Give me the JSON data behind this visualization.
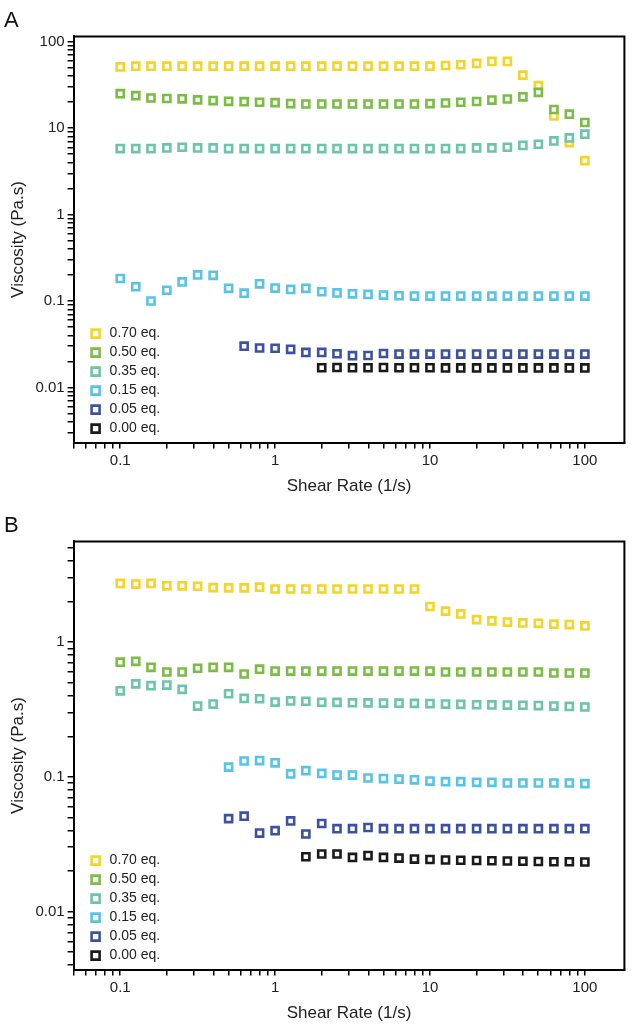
{
  "chart_data": [
    {
      "type": "scatter",
      "title": "A",
      "xlabel": "Shear Rate (1/s)",
      "ylabel": "Viscosity (Pa.s)",
      "log": "xy",
      "grid": false,
      "legend": "bottom left",
      "marker": "square",
      "x": [
        0.1,
        0.126,
        0.158,
        0.2,
        0.251,
        0.316,
        0.398,
        0.501,
        0.631,
        0.794,
        1,
        1.26,
        1.58,
        2,
        2.51,
        3.16,
        3.98,
        5.01,
        6.31,
        7.94,
        10,
        12.6,
        15.8,
        20,
        25.1,
        31.6,
        39.8,
        50.1,
        63.1,
        79.4,
        100
      ],
      "xlim": [
        0.05,
        180
      ],
      "xticks": [
        {
          "value": 0.05,
          "label": null
        },
        {
          "value": 0.06,
          "label": null
        },
        {
          "value": 0.07,
          "label": null
        },
        {
          "value": 0.08,
          "label": null
        },
        {
          "value": 0.09,
          "label": null
        },
        0.1,
        {
          "value": 0.2,
          "label": null
        },
        {
          "value": 0.3,
          "label": null
        },
        {
          "value": 0.4,
          "label": null
        },
        {
          "value": 0.5,
          "label": null
        },
        {
          "value": 0.6,
          "label": null
        },
        {
          "value": 0.7,
          "label": null
        },
        {
          "value": 0.8,
          "label": null
        },
        {
          "value": 0.9,
          "label": null
        },
        1,
        {
          "value": 2,
          "label": null
        },
        {
          "value": 3,
          "label": null
        },
        {
          "value": 4,
          "label": null
        },
        {
          "value": 5,
          "label": null
        },
        {
          "value": 6,
          "label": null
        },
        {
          "value": 7,
          "label": null
        },
        {
          "value": 8,
          "label": null
        },
        {
          "value": 9,
          "label": null
        },
        10,
        {
          "value": 20,
          "label": null
        },
        {
          "value": 30,
          "label": null
        },
        {
          "value": 40,
          "label": null
        },
        {
          "value": 50,
          "label": null
        },
        {
          "value": 60,
          "label": null
        },
        {
          "value": 70,
          "label": null
        },
        {
          "value": 80,
          "label": null
        },
        {
          "value": 90,
          "label": null
        },
        100
      ],
      "ylim": [
        0.0023,
        115
      ],
      "yticks": [
        {
          "value": 0.003,
          "label": null
        },
        {
          "value": 0.004,
          "label": null
        },
        {
          "value": 0.005,
          "label": null
        },
        {
          "value": 0.006,
          "label": null
        },
        {
          "value": 0.007,
          "label": null
        },
        {
          "value": 0.008,
          "label": null
        },
        {
          "value": 0.009,
          "label": null
        },
        0.01,
        {
          "value": 0.02,
          "label": null
        },
        {
          "value": 0.03,
          "label": null
        },
        {
          "value": 0.04,
          "label": null
        },
        {
          "value": 0.05,
          "label": null
        },
        {
          "value": 0.06,
          "label": null
        },
        {
          "value": 0.07,
          "label": null
        },
        {
          "value": 0.08,
          "label": null
        },
        {
          "value": 0.09,
          "label": null
        },
        0.1,
        {
          "value": 0.2,
          "label": null
        },
        {
          "value": 0.3,
          "label": null
        },
        {
          "value": 0.4,
          "label": null
        },
        {
          "value": 0.5,
          "label": null
        },
        {
          "value": 0.6,
          "label": null
        },
        {
          "value": 0.7,
          "label": null
        },
        {
          "value": 0.8,
          "label": null
        },
        {
          "value": 0.9,
          "label": null
        },
        1,
        {
          "value": 2,
          "label": null
        },
        {
          "value": 3,
          "label": null
        },
        {
          "value": 4,
          "label": null
        },
        {
          "value": 5,
          "label": null
        },
        {
          "value": 6,
          "label": null
        },
        {
          "value": 7,
          "label": null
        },
        {
          "value": 8,
          "label": null
        },
        {
          "value": 9,
          "label": null
        },
        10,
        {
          "value": 20,
          "label": null
        },
        {
          "value": 30,
          "label": null
        },
        {
          "value": 40,
          "label": null
        },
        {
          "value": 50,
          "label": null
        },
        {
          "value": 60,
          "label": null
        },
        {
          "value": 70,
          "label": null
        },
        {
          "value": 80,
          "label": null
        },
        {
          "value": 90,
          "label": null
        },
        100
      ],
      "series": [
        {
          "name": "0.70 eq.",
          "color": "#f5d327",
          "values": [
            51,
            52,
            52,
            52,
            52,
            52,
            52,
            52,
            52,
            52,
            52,
            52,
            52,
            52,
            52,
            52,
            52,
            52,
            52,
            52,
            52,
            53,
            54,
            56,
            59,
            59,
            41,
            31,
            13.8,
            6.8,
            4.2
          ]
        },
        {
          "name": "0.50 eq.",
          "color": "#79bd43",
          "values": [
            25,
            23.7,
            22.3,
            22,
            21.8,
            21.2,
            20.8,
            20.4,
            20.2,
            19.9,
            19.7,
            19.2,
            19,
            19,
            19,
            19,
            19,
            19,
            19,
            19,
            19.2,
            19.5,
            19.9,
            20.3,
            21.1,
            21.7,
            23,
            25.9,
            16.4,
            14.5,
            11.6
          ]
        },
        {
          "name": "0.35 eq.",
          "color": "#6cc4ad",
          "values": [
            5.8,
            5.8,
            5.8,
            5.9,
            6,
            5.9,
            5.9,
            5.8,
            5.8,
            5.8,
            5.8,
            5.8,
            5.8,
            5.8,
            5.8,
            5.8,
            5.8,
            5.8,
            5.8,
            5.8,
            5.8,
            5.8,
            5.8,
            5.9,
            5.9,
            6,
            6.3,
            6.5,
            7.1,
            7.7,
            8.5
          ]
        },
        {
          "name": "0.15 eq.",
          "color": "#56c3e8",
          "values": [
            0.182,
            0.146,
            0.1,
            0.133,
            0.166,
            0.2,
            0.198,
            0.14,
            0.123,
            0.158,
            0.141,
            0.136,
            0.14,
            0.128,
            0.124,
            0.121,
            0.119,
            0.117,
            0.115,
            0.114,
            0.114,
            0.114,
            0.114,
            0.114,
            0.114,
            0.114,
            0.114,
            0.114,
            0.114,
            0.114,
            0.114
          ]
        },
        {
          "name": "0.05 eq.",
          "color": "#3b51a6",
          "values": [
            null,
            null,
            null,
            null,
            null,
            null,
            null,
            null,
            0.03,
            0.0286,
            0.0284,
            0.0276,
            0.0254,
            0.0254,
            0.0245,
            0.0233,
            0.0234,
            0.0247,
            0.0243,
            0.0243,
            0.0243,
            0.0243,
            0.0243,
            0.0243,
            0.0243,
            0.0243,
            0.0243,
            0.0243,
            0.0243,
            0.0243,
            0.0243
          ]
        },
        {
          "name": "0.00 eq.",
          "color": "#1a1a1a",
          "values": [
            null,
            null,
            null,
            null,
            null,
            null,
            null,
            null,
            null,
            null,
            null,
            null,
            null,
            0.0169,
            0.017,
            0.0169,
            0.0169,
            0.017,
            0.0169,
            0.0169,
            0.0169,
            0.0168,
            0.0168,
            0.0168,
            0.0168,
            0.0168,
            0.0168,
            0.0168,
            0.0168,
            0.0168,
            0.0168
          ]
        }
      ]
    },
    {
      "type": "scatter",
      "title": "B",
      "xlabel": "Shear Rate (1/s)",
      "ylabel": "Viscosity (Pa.s)",
      "log": "xy",
      "grid": false,
      "legend": "bottom left",
      "marker": "square",
      "x": [
        0.1,
        0.126,
        0.158,
        0.2,
        0.251,
        0.316,
        0.398,
        0.501,
        0.631,
        0.794,
        1,
        1.26,
        1.58,
        2,
        2.51,
        3.16,
        3.98,
        5.01,
        6.31,
        7.94,
        10,
        12.6,
        15.8,
        20,
        25.1,
        31.6,
        39.8,
        50.1,
        63.1,
        79.4,
        100
      ],
      "xlim": [
        0.05,
        180
      ],
      "xticks": [
        {
          "value": 0.05,
          "label": null
        },
        {
          "value": 0.06,
          "label": null
        },
        {
          "value": 0.07,
          "label": null
        },
        {
          "value": 0.08,
          "label": null
        },
        {
          "value": 0.09,
          "label": null
        },
        0.1,
        {
          "value": 0.2,
          "label": null
        },
        {
          "value": 0.3,
          "label": null
        },
        {
          "value": 0.4,
          "label": null
        },
        {
          "value": 0.5,
          "label": null
        },
        {
          "value": 0.6,
          "label": null
        },
        {
          "value": 0.7,
          "label": null
        },
        {
          "value": 0.8,
          "label": null
        },
        {
          "value": 0.9,
          "label": null
        },
        1,
        {
          "value": 2,
          "label": null
        },
        {
          "value": 3,
          "label": null
        },
        {
          "value": 4,
          "label": null
        },
        {
          "value": 5,
          "label": null
        },
        {
          "value": 6,
          "label": null
        },
        {
          "value": 7,
          "label": null
        },
        {
          "value": 8,
          "label": null
        },
        {
          "value": 9,
          "label": null
        },
        10,
        {
          "value": 20,
          "label": null
        },
        {
          "value": 30,
          "label": null
        },
        {
          "value": 40,
          "label": null
        },
        {
          "value": 50,
          "label": null
        },
        {
          "value": 60,
          "label": null
        },
        {
          "value": 70,
          "label": null
        },
        {
          "value": 80,
          "label": null
        },
        {
          "value": 90,
          "label": null
        },
        100
      ],
      "ylim": [
        0.0037,
        5.6
      ],
      "yticks": [
        {
          "value": 0.004,
          "label": null
        },
        {
          "value": 0.005,
          "label": null
        },
        {
          "value": 0.006,
          "label": null
        },
        {
          "value": 0.007,
          "label": null
        },
        {
          "value": 0.008,
          "label": null
        },
        {
          "value": 0.009,
          "label": null
        },
        0.01,
        {
          "value": 0.02,
          "label": null
        },
        {
          "value": 0.03,
          "label": null
        },
        {
          "value": 0.04,
          "label": null
        },
        {
          "value": 0.05,
          "label": null
        },
        {
          "value": 0.06,
          "label": null
        },
        {
          "value": 0.07,
          "label": null
        },
        {
          "value": 0.08,
          "label": null
        },
        {
          "value": 0.09,
          "label": null
        },
        0.1,
        {
          "value": 0.2,
          "label": null
        },
        {
          "value": 0.3,
          "label": null
        },
        {
          "value": 0.4,
          "label": null
        },
        {
          "value": 0.5,
          "label": null
        },
        {
          "value": 0.6,
          "label": null
        },
        {
          "value": 0.7,
          "label": null
        },
        {
          "value": 0.8,
          "label": null
        },
        {
          "value": 0.9,
          "label": null
        },
        1,
        {
          "value": 2,
          "label": null
        },
        {
          "value": 3,
          "label": null
        },
        {
          "value": 4,
          "label": null
        },
        {
          "value": 5,
          "label": null
        }
      ],
      "series": [
        {
          "name": "0.70 eq.",
          "color": "#f5d327",
          "values": [
            2.73,
            2.7,
            2.73,
            2.62,
            2.62,
            2.6,
            2.54,
            2.53,
            2.53,
            2.56,
            2.48,
            2.48,
            2.48,
            2.48,
            2.48,
            2.48,
            2.48,
            2.48,
            2.48,
            2.48,
            1.84,
            1.7,
            1.62,
            1.47,
            1.44,
            1.41,
            1.39,
            1.38,
            1.36,
            1.35,
            1.32
          ]
        },
        {
          "name": "0.50 eq.",
          "color": "#79bd43",
          "values": [
            0.71,
            0.72,
            0.65,
            0.6,
            0.6,
            0.64,
            0.65,
            0.65,
            0.58,
            0.63,
            0.61,
            0.61,
            0.61,
            0.61,
            0.61,
            0.61,
            0.61,
            0.61,
            0.61,
            0.61,
            0.61,
            0.6,
            0.6,
            0.6,
            0.6,
            0.6,
            0.6,
            0.6,
            0.59,
            0.59,
            0.59
          ]
        },
        {
          "name": "0.35 eq.",
          "color": "#6cc4ad",
          "values": [
            0.435,
            0.49,
            0.475,
            0.48,
            0.446,
            0.335,
            0.347,
            0.414,
            0.382,
            0.38,
            0.359,
            0.366,
            0.364,
            0.358,
            0.357,
            0.355,
            0.354,
            0.353,
            0.352,
            0.351,
            0.35,
            0.347,
            0.345,
            0.343,
            0.342,
            0.341,
            0.34,
            0.338,
            0.335,
            0.333,
            0.33
          ]
        },
        {
          "name": "0.15 eq.",
          "color": "#56c3e8",
          "values": [
            null,
            null,
            null,
            null,
            null,
            null,
            null,
            0.118,
            0.131,
            0.132,
            0.127,
            0.105,
            0.111,
            0.106,
            0.103,
            0.103,
            0.098,
            0.097,
            0.096,
            0.095,
            0.093,
            0.092,
            0.092,
            0.091,
            0.091,
            0.09,
            0.09,
            0.09,
            0.09,
            0.09,
            0.089
          ]
        },
        {
          "name": "0.05 eq.",
          "color": "#3b51a6",
          "values": [
            null,
            null,
            null,
            null,
            null,
            null,
            null,
            0.0489,
            0.051,
            0.0382,
            0.0398,
            0.047,
            0.0376,
            0.045,
            0.0412,
            0.0412,
            0.042,
            0.0412,
            0.0412,
            0.0412,
            0.0412,
            0.0412,
            0.0412,
            0.0412,
            0.0412,
            0.0412,
            0.0412,
            0.0412,
            0.0412,
            0.0412,
            0.0412
          ]
        },
        {
          "name": "0.00 eq.",
          "color": "#1a1a1a",
          "values": [
            null,
            null,
            null,
            null,
            null,
            null,
            null,
            null,
            null,
            null,
            null,
            null,
            0.0255,
            0.0267,
            0.0267,
            0.0252,
            0.026,
            0.0252,
            0.0249,
            0.0245,
            0.0243,
            0.0241,
            0.024,
            0.0239,
            0.0238,
            0.0237,
            0.0236,
            0.0235,
            0.0234,
            0.0234,
            0.0233
          ]
        }
      ]
    }
  ]
}
